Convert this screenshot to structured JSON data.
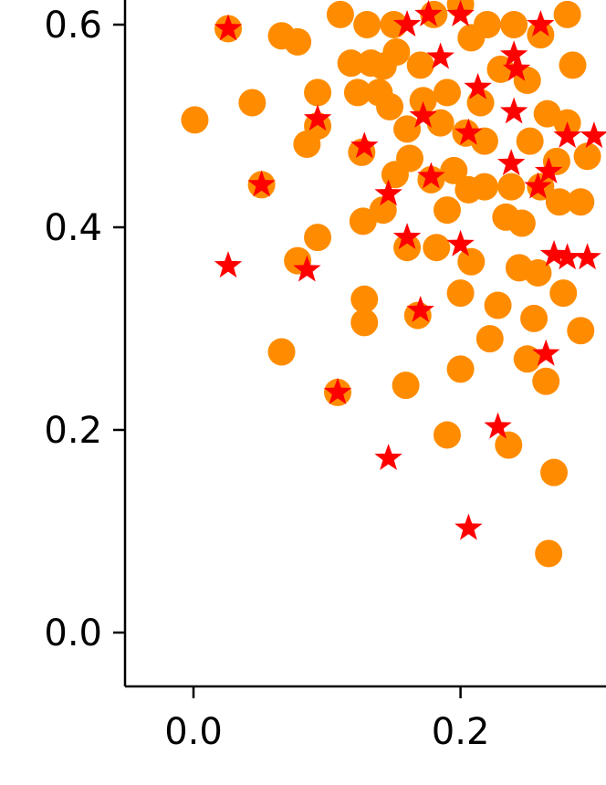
{
  "chart_data": {
    "type": "scatter",
    "title": "",
    "xlabel": "",
    "ylabel": "",
    "xlim": [
      -0.05,
      0.31
    ],
    "ylim": [
      -0.05,
      0.63
    ],
    "x_ticks": [
      {
        "value": 0.0,
        "label": "0.0"
      },
      {
        "value": 0.2,
        "label": "0.2"
      }
    ],
    "y_ticks": [
      {
        "value": 0.0,
        "label": "0.0"
      },
      {
        "value": 0.2,
        "label": "0.2"
      },
      {
        "value": 0.4,
        "label": "0.4"
      },
      {
        "value": 0.6,
        "label": "0.6"
      }
    ],
    "grid": false,
    "series": [
      {
        "marker": "circle",
        "color": "#ff8c00",
        "points": [
          [
            0.001,
            0.506
          ],
          [
            0.026,
            0.596
          ],
          [
            0.044,
            0.523
          ],
          [
            0.051,
            0.442
          ],
          [
            0.066,
            0.277
          ],
          [
            0.066,
            0.589
          ],
          [
            0.078,
            0.583
          ],
          [
            0.078,
            0.367
          ],
          [
            0.085,
            0.482
          ],
          [
            0.093,
            0.39
          ],
          [
            0.093,
            0.533
          ],
          [
            0.093,
            0.5
          ],
          [
            0.108,
            0.237
          ],
          [
            0.118,
            0.562
          ],
          [
            0.123,
            0.533
          ],
          [
            0.126,
            0.474
          ],
          [
            0.127,
            0.406
          ],
          [
            0.128,
            0.306
          ],
          [
            0.128,
            0.329
          ],
          [
            0.133,
            0.562
          ],
          [
            0.139,
            0.533
          ],
          [
            0.142,
            0.417
          ],
          [
            0.142,
            0.559
          ],
          [
            0.147,
            0.519
          ],
          [
            0.151,
            0.452
          ],
          [
            0.152,
            0.573
          ],
          [
            0.159,
            0.244
          ],
          [
            0.16,
            0.497
          ],
          [
            0.16,
            0.38
          ],
          [
            0.162,
            0.468
          ],
          [
            0.168,
            0.313
          ],
          [
            0.17,
            0.56
          ],
          [
            0.172,
            0.525
          ],
          [
            0.178,
            0.447
          ],
          [
            0.182,
            0.38
          ],
          [
            0.185,
            0.503
          ],
          [
            0.19,
            0.195
          ],
          [
            0.19,
            0.417
          ],
          [
            0.19,
            0.533
          ],
          [
            0.195,
            0.456
          ],
          [
            0.2,
            0.26
          ],
          [
            0.2,
            0.335
          ],
          [
            0.204,
            0.493
          ],
          [
            0.206,
            0.437
          ],
          [
            0.208,
            0.587
          ],
          [
            0.208,
            0.366
          ],
          [
            0.215,
            0.523
          ],
          [
            0.218,
            0.485
          ],
          [
            0.218,
            0.44
          ],
          [
            0.222,
            0.29
          ],
          [
            0.228,
            0.323
          ],
          [
            0.23,
            0.556
          ],
          [
            0.234,
            0.41
          ],
          [
            0.236,
            0.185
          ],
          [
            0.238,
            0.44
          ],
          [
            0.244,
            0.36
          ],
          [
            0.246,
            0.404
          ],
          [
            0.25,
            0.27
          ],
          [
            0.252,
            0.485
          ],
          [
            0.255,
            0.31
          ],
          [
            0.258,
            0.355
          ],
          [
            0.26,
            0.44
          ],
          [
            0.264,
            0.248
          ],
          [
            0.265,
            0.512
          ],
          [
            0.266,
            0.078
          ],
          [
            0.27,
            0.158
          ],
          [
            0.272,
            0.465
          ],
          [
            0.274,
            0.425
          ],
          [
            0.277,
            0.335
          ],
          [
            0.28,
            0.503
          ],
          [
            0.284,
            0.56
          ],
          [
            0.29,
            0.298
          ],
          [
            0.29,
            0.425
          ],
          [
            0.295,
            0.47
          ],
          [
            0.25,
            0.545
          ],
          [
            0.24,
            0.6
          ],
          [
            0.26,
            0.59
          ],
          [
            0.28,
            0.61
          ],
          [
            0.18,
            0.61
          ],
          [
            0.2,
            0.62
          ],
          [
            0.22,
            0.6
          ],
          [
            0.11,
            0.61
          ],
          [
            0.13,
            0.6
          ],
          [
            0.15,
            0.6
          ]
        ]
      },
      {
        "marker": "star",
        "color": "#ff0000",
        "points": [
          [
            0.026,
            0.596
          ],
          [
            0.026,
            0.362
          ],
          [
            0.051,
            0.442
          ],
          [
            0.085,
            0.358
          ],
          [
            0.093,
            0.507
          ],
          [
            0.108,
            0.237
          ],
          [
            0.128,
            0.48
          ],
          [
            0.146,
            0.172
          ],
          [
            0.146,
            0.433
          ],
          [
            0.16,
            0.39
          ],
          [
            0.17,
            0.318
          ],
          [
            0.172,
            0.51
          ],
          [
            0.178,
            0.45
          ],
          [
            0.185,
            0.568
          ],
          [
            0.2,
            0.383
          ],
          [
            0.206,
            0.103
          ],
          [
            0.206,
            0.493
          ],
          [
            0.213,
            0.538
          ],
          [
            0.228,
            0.203
          ],
          [
            0.238,
            0.463
          ],
          [
            0.24,
            0.514
          ],
          [
            0.242,
            0.556
          ],
          [
            0.258,
            0.44
          ],
          [
            0.264,
            0.275
          ],
          [
            0.266,
            0.455
          ],
          [
            0.27,
            0.373
          ],
          [
            0.28,
            0.37
          ],
          [
            0.295,
            0.37
          ],
          [
            0.28,
            0.49
          ],
          [
            0.3,
            0.49
          ],
          [
            0.16,
            0.6
          ],
          [
            0.176,
            0.61
          ],
          [
            0.2,
            0.61
          ],
          [
            0.24,
            0.57
          ],
          [
            0.26,
            0.6
          ]
        ]
      }
    ]
  }
}
